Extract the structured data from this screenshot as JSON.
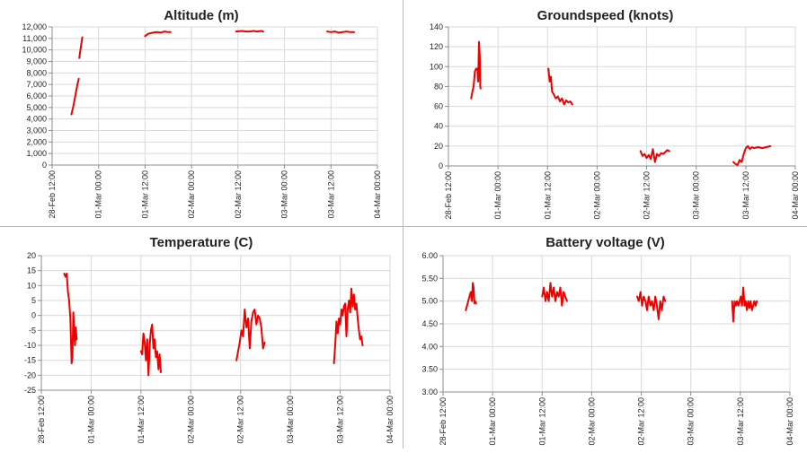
{
  "series_color": "#ee0000",
  "charts": [
    {
      "type": "line",
      "title": "Altitude (m)",
      "ylim": [
        0,
        12000
      ],
      "y_ticks": [
        0,
        1000,
        2000,
        3000,
        4000,
        5000,
        6000,
        7000,
        8000,
        9000,
        10000,
        11000,
        12000
      ],
      "y_tick_labels": [
        "0",
        "1,000",
        "2,000",
        "3,000",
        "4,000",
        "5,000",
        "6,000",
        "7,000",
        "8,000",
        "9,000",
        "10,000",
        "11,000",
        "12,000"
      ],
      "x_tick_labels": [
        "28-Feb 12:00",
        "01-Mar 00:00",
        "01-Mar 12:00",
        "02-Mar 00:00",
        "02-Mar 12:00",
        "03-Mar 00:00",
        "03-Mar 12:00",
        "04-Mar 00:00"
      ],
      "grid": true,
      "segments": [
        [
          [
            5.0,
            4400
          ],
          [
            5.4,
            5000
          ],
          [
            5.8,
            5700
          ],
          [
            6.2,
            6400
          ],
          [
            6.6,
            7100
          ],
          [
            6.9,
            7500
          ]
        ],
        [
          [
            7.0,
            9300
          ],
          [
            7.3,
            10000
          ],
          [
            7.6,
            10700
          ],
          [
            7.8,
            11100
          ]
        ],
        [
          [
            24.0,
            11200
          ],
          [
            24.8,
            11400
          ],
          [
            26,
            11500
          ],
          [
            27,
            11550
          ],
          [
            28,
            11500
          ],
          [
            29,
            11600
          ],
          [
            30,
            11550
          ],
          [
            30.6,
            11550
          ]
        ],
        [
          [
            47.5,
            11600
          ],
          [
            49,
            11650
          ],
          [
            50,
            11600
          ],
          [
            51,
            11600
          ],
          [
            52,
            11650
          ],
          [
            53,
            11600
          ],
          [
            54,
            11650
          ],
          [
            54.5,
            11600
          ]
        ],
        [
          [
            71.0,
            11600
          ],
          [
            72,
            11550
          ],
          [
            73,
            11600
          ],
          [
            74,
            11500
          ],
          [
            75,
            11550
          ],
          [
            76,
            11600
          ],
          [
            77,
            11550
          ],
          [
            78,
            11550
          ]
        ]
      ]
    },
    {
      "type": "line",
      "title": "Groundspeed (knots)",
      "ylim": [
        0,
        140
      ],
      "y_ticks": [
        0,
        20,
        40,
        60,
        80,
        100,
        120,
        140
      ],
      "y_tick_labels": [
        "0",
        "20",
        "40",
        "60",
        "80",
        "100",
        "120",
        "140"
      ],
      "x_tick_labels": [
        "28-Feb 12:00",
        "01-Mar 00:00",
        "01-Mar 12:00",
        "02-Mar 00:00",
        "02-Mar 12:00",
        "03-Mar 00:00",
        "03-Mar 12:00",
        "04-Mar 00:00"
      ],
      "grid": true,
      "segments": [
        [
          [
            5.5,
            68
          ],
          [
            5.8,
            75
          ],
          [
            6.1,
            80
          ],
          [
            6.4,
            95
          ],
          [
            6.7,
            98
          ],
          [
            7.0,
            98
          ],
          [
            7.2,
            85
          ],
          [
            7.4,
            125
          ],
          [
            7.6,
            110
          ],
          [
            7.7,
            80
          ],
          [
            7.8,
            78
          ]
        ],
        [
          [
            24.2,
            98
          ],
          [
            24.5,
            85
          ],
          [
            24.8,
            90
          ],
          [
            25.1,
            75
          ],
          [
            25.5,
            72
          ],
          [
            26,
            68
          ],
          [
            26.5,
            70
          ],
          [
            27,
            65
          ],
          [
            27.5,
            68
          ],
          [
            28,
            62
          ],
          [
            28.5,
            66
          ],
          [
            29,
            64
          ],
          [
            29.5,
            65
          ],
          [
            30,
            62
          ]
        ],
        [
          [
            46.5,
            15
          ],
          [
            47,
            10
          ],
          [
            47.5,
            12
          ],
          [
            48,
            8
          ],
          [
            48.5,
            11
          ],
          [
            49,
            7
          ],
          [
            49.5,
            17
          ],
          [
            50,
            4
          ],
          [
            50.5,
            12
          ],
          [
            51,
            10
          ],
          [
            51.5,
            13
          ],
          [
            52,
            12
          ],
          [
            52.5,
            14
          ],
          [
            53,
            16
          ],
          [
            53.5,
            15
          ]
        ],
        [
          [
            69,
            4
          ],
          [
            69.5,
            2
          ],
          [
            70,
            1
          ],
          [
            70.5,
            6
          ],
          [
            71,
            4
          ],
          [
            71.5,
            12
          ],
          [
            72,
            18
          ],
          [
            72.5,
            20
          ],
          [
            73,
            17
          ],
          [
            73.5,
            19
          ],
          [
            74,
            18
          ],
          [
            75,
            19
          ],
          [
            76,
            18
          ],
          [
            77,
            19
          ],
          [
            78,
            20
          ]
        ]
      ]
    },
    {
      "type": "line",
      "title": "Temperature (C)",
      "ylim": [
        -25,
        20
      ],
      "y_ticks": [
        -25,
        -20,
        -15,
        -10,
        -5,
        0,
        5,
        10,
        15,
        20
      ],
      "y_tick_labels": [
        "-25",
        "-20",
        "-15",
        "-10",
        "-5",
        "0",
        "5",
        "10",
        "15",
        "20"
      ],
      "x_tick_labels": [
        "28-Feb 12:00",
        "01-Mar 00:00",
        "01-Mar 12:00",
        "02-Mar 00:00",
        "02-Mar 12:00",
        "03-Mar 00:00",
        "03-Mar 12:00",
        "04-Mar 00:00"
      ],
      "grid": true,
      "segments": [
        [
          [
            5.5,
            14
          ],
          [
            5.8,
            13
          ],
          [
            6.1,
            14
          ],
          [
            6.4,
            8
          ],
          [
            6.7,
            5
          ],
          [
            7.0,
            -1
          ],
          [
            7.3,
            -16
          ],
          [
            7.5,
            -14
          ],
          [
            7.7,
            1
          ],
          [
            7.9,
            -5
          ],
          [
            8.1,
            -10
          ],
          [
            8.3,
            -4
          ],
          [
            8.5,
            -8
          ]
        ],
        [
          [
            24.0,
            -12
          ],
          [
            24.3,
            -13
          ],
          [
            24.6,
            -6
          ],
          [
            24.9,
            -9
          ],
          [
            25.2,
            -15
          ],
          [
            25.5,
            -8
          ],
          [
            25.8,
            -20
          ],
          [
            26.1,
            -10
          ],
          [
            26.4,
            -5
          ],
          [
            26.7,
            -3
          ],
          [
            27.0,
            -11
          ],
          [
            27.3,
            -8
          ],
          [
            27.6,
            -14
          ],
          [
            27.9,
            -12
          ],
          [
            28.2,
            -18
          ],
          [
            28.5,
            -13
          ],
          [
            28.8,
            -19
          ]
        ],
        [
          [
            47.0,
            -15
          ],
          [
            47.4,
            -12
          ],
          [
            47.8,
            -9
          ],
          [
            48.2,
            -5
          ],
          [
            48.6,
            -7
          ],
          [
            49.0,
            2
          ],
          [
            49.4,
            -4
          ],
          [
            49.8,
            -1
          ],
          [
            50.2,
            -11
          ],
          [
            50.6,
            -2
          ],
          [
            51.0,
            1
          ],
          [
            51.4,
            2
          ],
          [
            51.8,
            -3
          ],
          [
            52.2,
            0
          ],
          [
            52.6,
            -1
          ],
          [
            53.0,
            -4
          ],
          [
            53.4,
            -11
          ],
          [
            53.8,
            -9
          ]
        ],
        [
          [
            70.5,
            -16
          ],
          [
            70.8,
            -10
          ],
          [
            71.1,
            -2
          ],
          [
            71.4,
            -6
          ],
          [
            71.7,
            -1
          ],
          [
            72.0,
            -3
          ],
          [
            72.3,
            2
          ],
          [
            72.6,
            0
          ],
          [
            72.9,
            3
          ],
          [
            73.2,
            4
          ],
          [
            73.5,
            -7
          ],
          [
            73.8,
            2
          ],
          [
            74.1,
            5
          ],
          [
            74.4,
            1
          ],
          [
            74.7,
            9
          ],
          [
            75.0,
            3
          ],
          [
            75.3,
            7
          ],
          [
            75.6,
            2
          ],
          [
            75.9,
            4
          ],
          [
            76.2,
            -1
          ],
          [
            76.5,
            -5
          ],
          [
            76.8,
            -8
          ],
          [
            77.1,
            -7
          ],
          [
            77.4,
            -10
          ]
        ]
      ]
    },
    {
      "type": "line",
      "title": "Battery voltage (V)",
      "ylim": [
        3.0,
        6.0
      ],
      "y_ticks": [
        3.0,
        3.5,
        4.0,
        4.5,
        5.0,
        5.5,
        6.0
      ],
      "y_tick_labels": [
        "3.00",
        "3.50",
        "4.00",
        "4.50",
        "5.00",
        "5.50",
        "6.00"
      ],
      "x_tick_labels": [
        "28-Feb 12:00",
        "01-Mar 00:00",
        "01-Mar 12:00",
        "02-Mar 00:00",
        "02-Mar 12:00",
        "03-Mar 00:00",
        "03-Mar 12:00",
        "04-Mar 00:00"
      ],
      "grid": true,
      "segments": [
        [
          [
            5.5,
            4.8
          ],
          [
            5.8,
            4.9
          ],
          [
            6.1,
            5.0
          ],
          [
            6.4,
            5.1
          ],
          [
            6.7,
            5.2
          ],
          [
            7.0,
            5.0
          ],
          [
            7.2,
            5.4
          ],
          [
            7.4,
            5.3
          ],
          [
            7.6,
            4.95
          ],
          [
            7.8,
            5.0
          ],
          [
            8.0,
            4.95
          ]
        ],
        [
          [
            24.0,
            5.1
          ],
          [
            24.4,
            5.3
          ],
          [
            24.8,
            5.0
          ],
          [
            25.2,
            5.2
          ],
          [
            25.6,
            5.0
          ],
          [
            26.0,
            5.4
          ],
          [
            26.4,
            5.1
          ],
          [
            26.8,
            5.3
          ],
          [
            27.2,
            5.0
          ],
          [
            27.6,
            5.2
          ],
          [
            28.0,
            5.1
          ],
          [
            28.4,
            5.3
          ],
          [
            28.8,
            4.9
          ],
          [
            29.2,
            5.2
          ],
          [
            29.6,
            5.1
          ],
          [
            30.0,
            5.0
          ]
        ],
        [
          [
            47.0,
            5.1
          ],
          [
            47.4,
            5.0
          ],
          [
            47.8,
            5.2
          ],
          [
            48.2,
            4.9
          ],
          [
            48.6,
            5.1
          ],
          [
            49.0,
            5.0
          ],
          [
            49.4,
            4.8
          ],
          [
            49.8,
            5.1
          ],
          [
            50.2,
            4.9
          ],
          [
            50.6,
            5.0
          ],
          [
            51.0,
            4.8
          ],
          [
            51.4,
            5.1
          ],
          [
            51.8,
            4.9
          ],
          [
            52.2,
            4.6
          ],
          [
            52.6,
            5.0
          ],
          [
            53.0,
            4.8
          ],
          [
            53.4,
            5.1
          ],
          [
            53.8,
            5.0
          ]
        ],
        [
          [
            70.0,
            5.0
          ],
          [
            70.3,
            4.55
          ],
          [
            70.6,
            5.0
          ],
          [
            70.9,
            4.9
          ],
          [
            71.2,
            5.0
          ],
          [
            71.5,
            4.9
          ],
          [
            71.8,
            5.0
          ],
          [
            72.1,
            5.1
          ],
          [
            72.4,
            4.9
          ],
          [
            72.7,
            5.3
          ],
          [
            73.0,
            4.9
          ],
          [
            73.3,
            5.0
          ],
          [
            73.6,
            4.8
          ],
          [
            73.9,
            5.0
          ],
          [
            74.2,
            4.85
          ],
          [
            74.5,
            5.0
          ],
          [
            74.8,
            4.8
          ],
          [
            75.1,
            4.9
          ],
          [
            75.4,
            5.0
          ],
          [
            75.7,
            4.9
          ],
          [
            76.0,
            5.0
          ]
        ]
      ]
    }
  ],
  "x_axis_note_hours": "x values are hours after 28-Feb 12:00"
}
